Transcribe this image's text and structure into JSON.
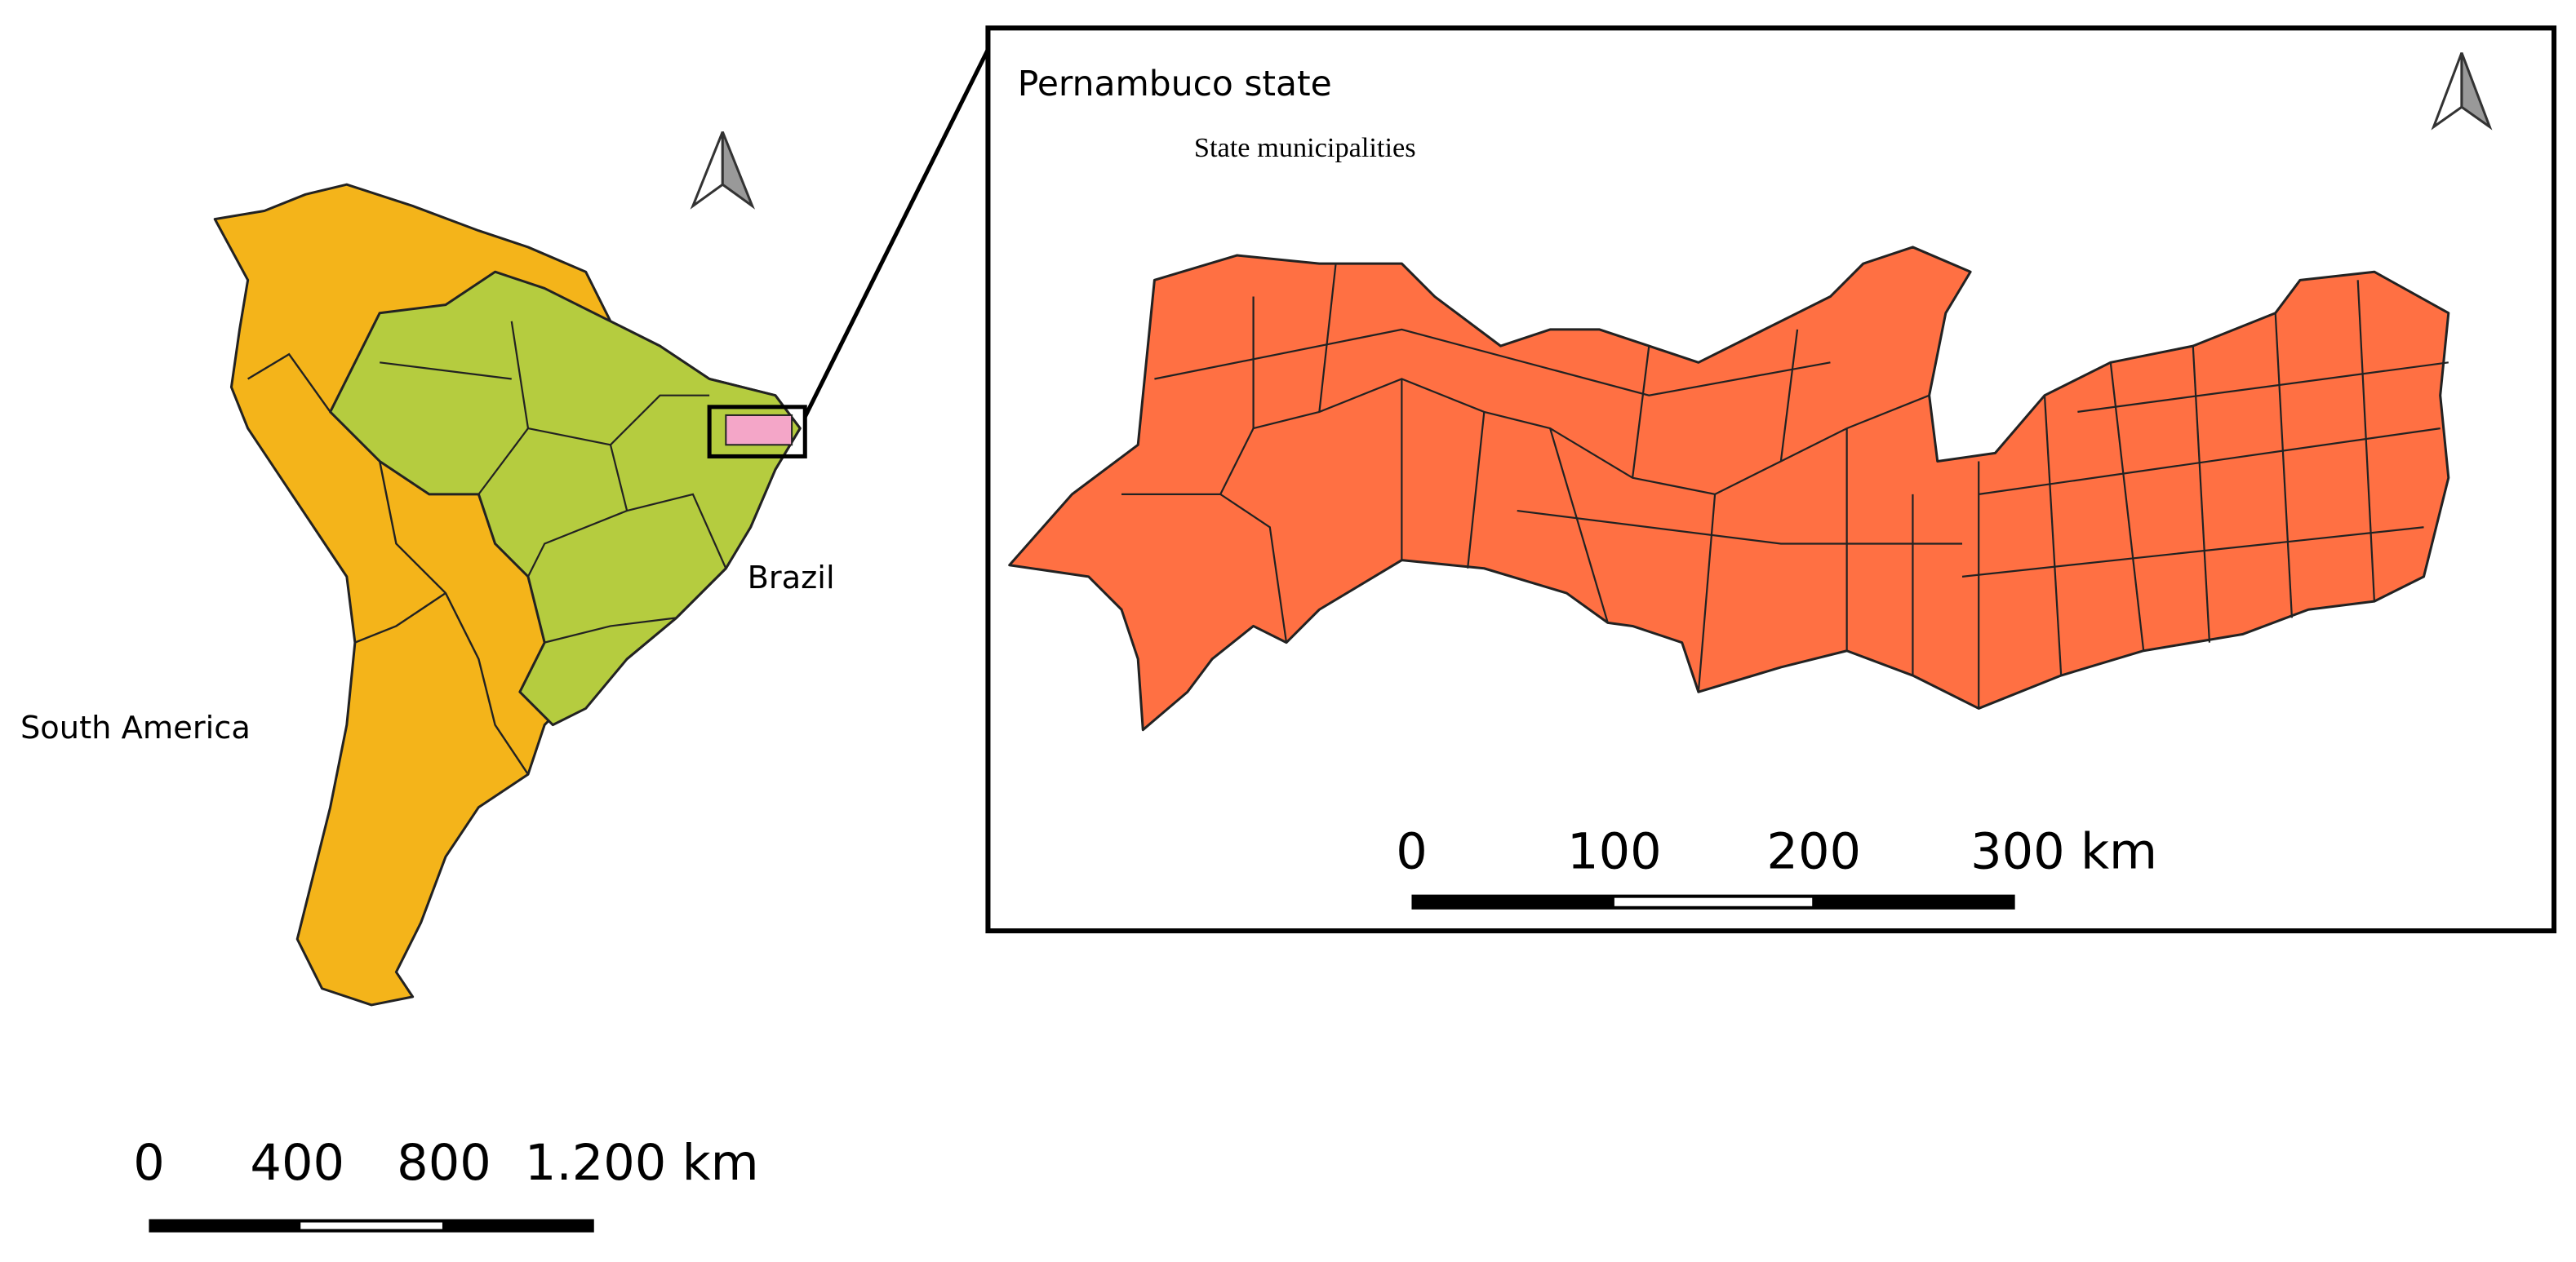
{
  "inset": {
    "title": "Pernambuco state",
    "subtitle": "State municipalities",
    "scale_labels": [
      "0",
      "100",
      "200",
      "300 km"
    ]
  },
  "overview": {
    "region_label": "South America",
    "country_label": "Brazil",
    "scale_labels": [
      "0",
      "400",
      "800",
      "1.200 km"
    ]
  }
}
